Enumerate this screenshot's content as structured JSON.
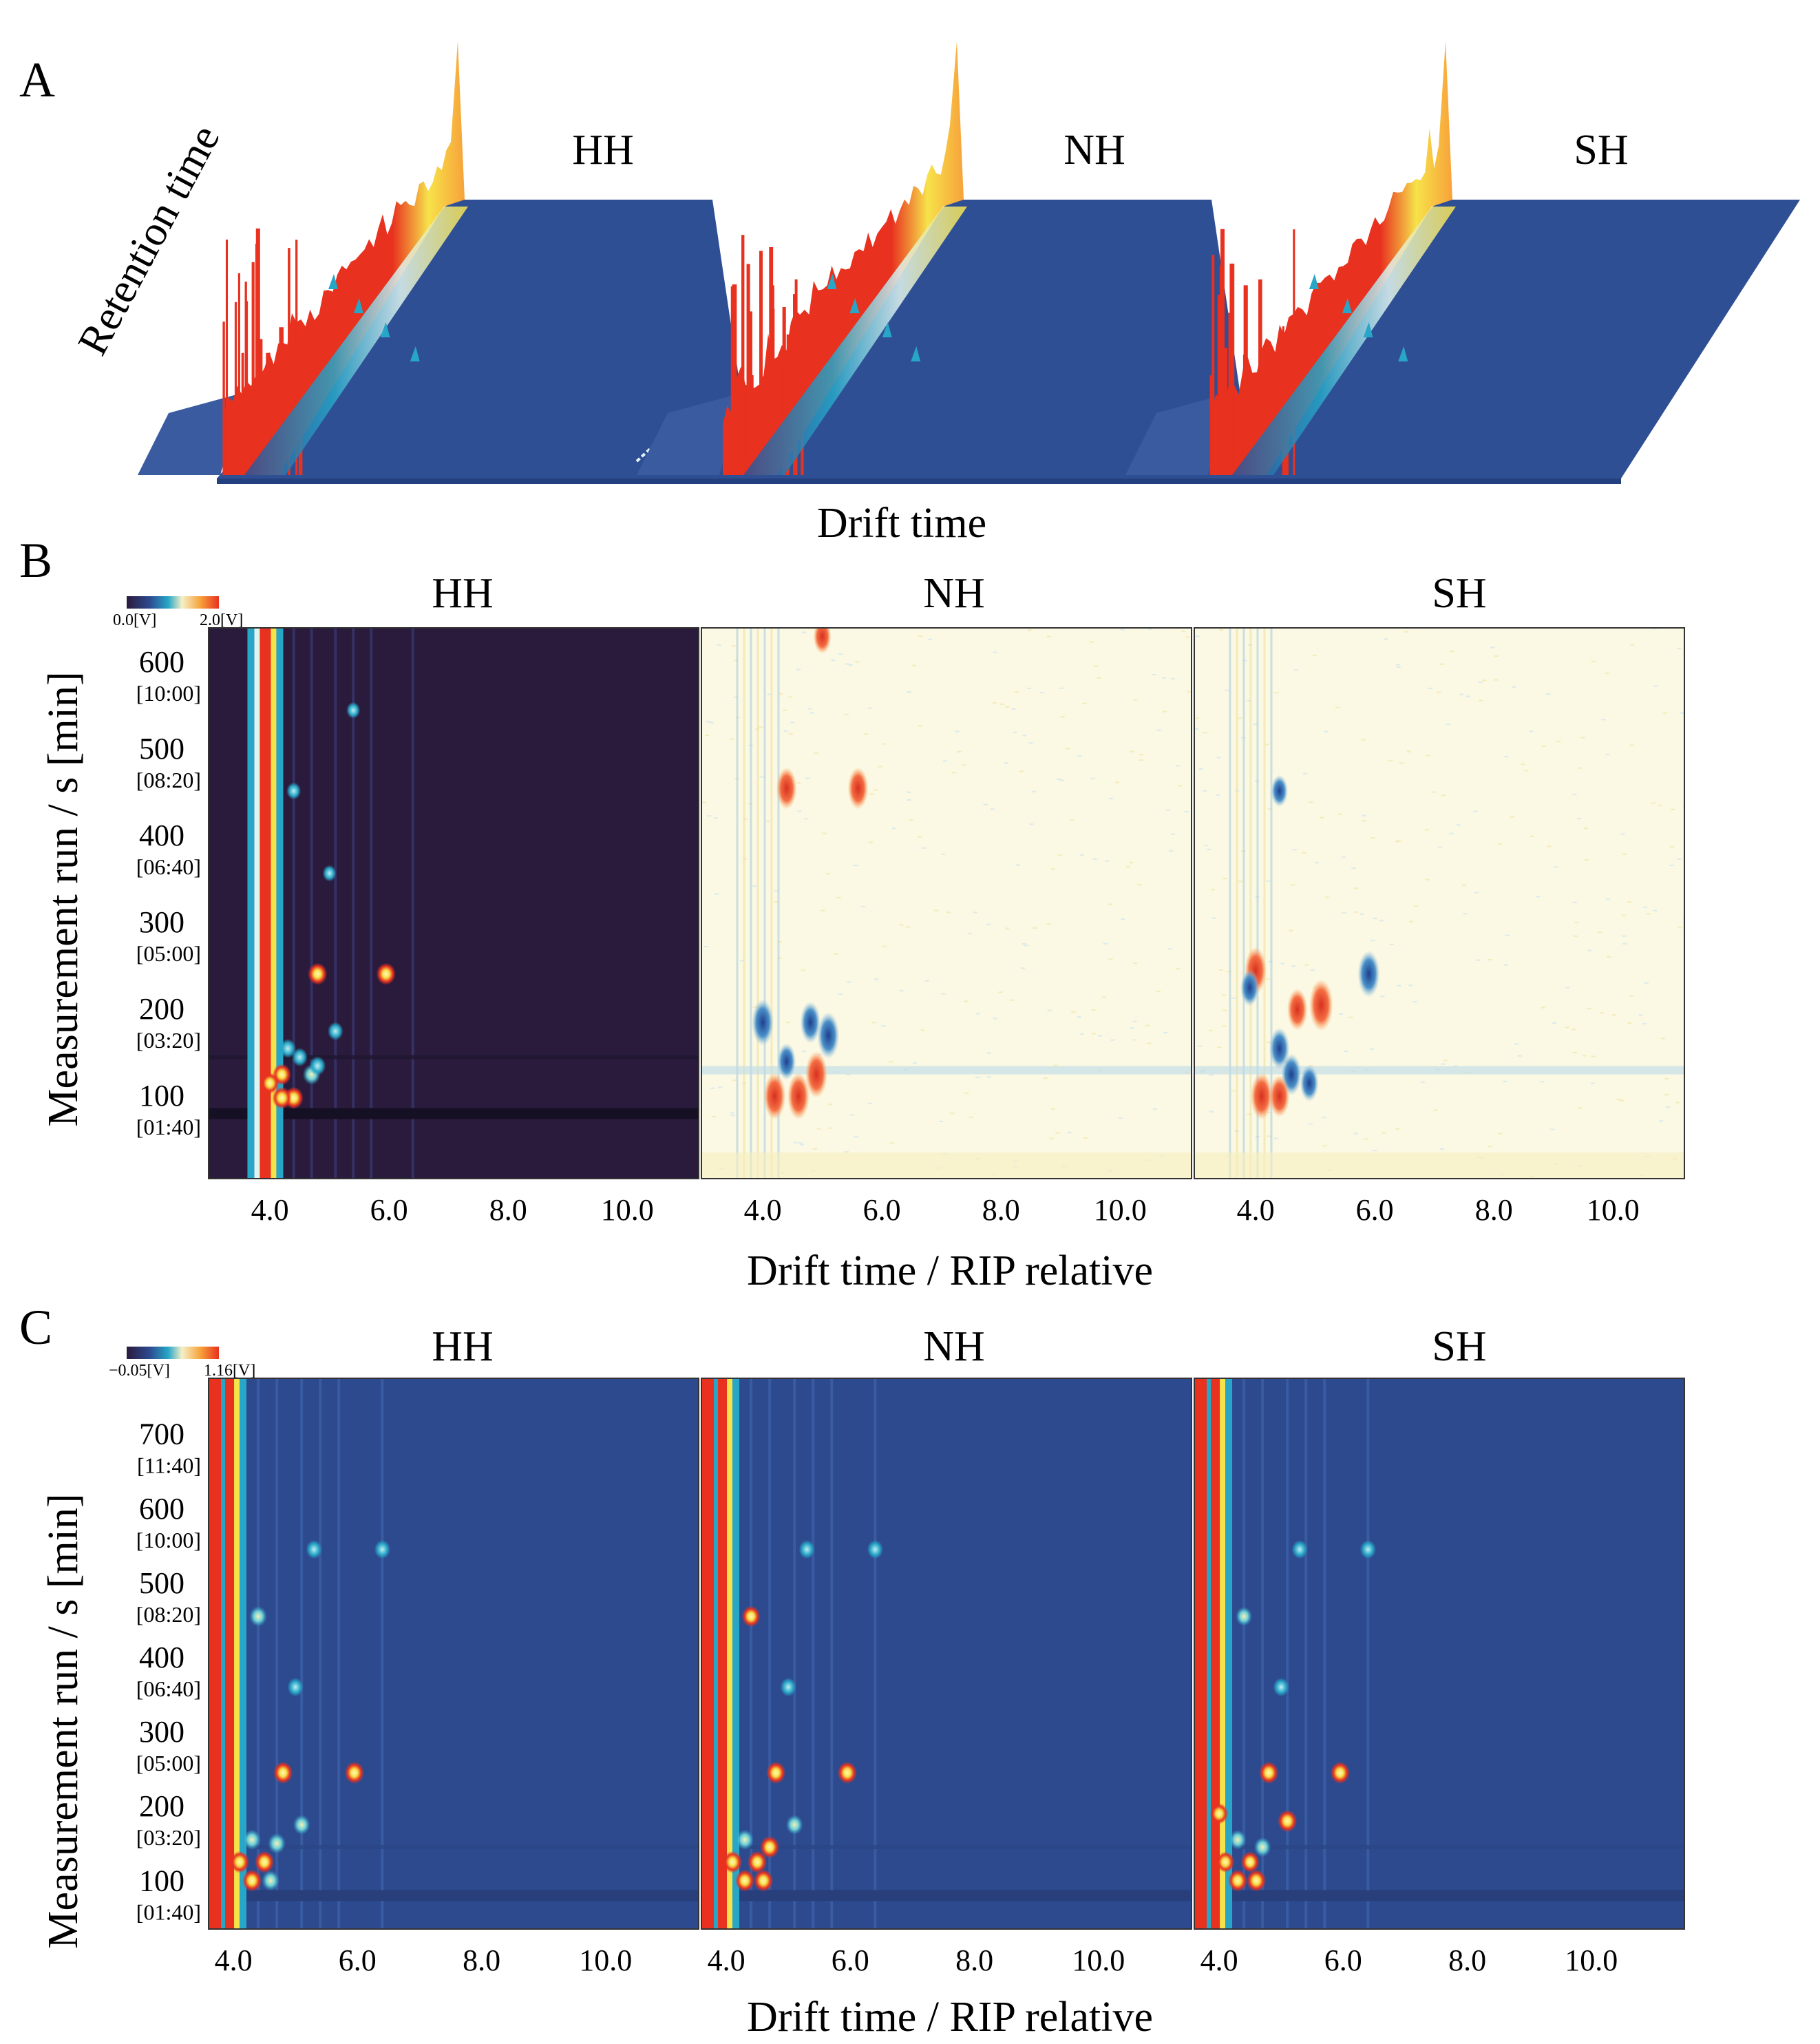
{
  "figure": {
    "panels": [
      {
        "label": "A",
        "type": "3d-topographic",
        "axis_labels": {
          "retention": "Retention time",
          "drift": "Drift time"
        },
        "samples": [
          "HH",
          "NH",
          "SH"
        ]
      },
      {
        "label": "B",
        "type": "heatmap-difference",
        "samples": [
          "HH",
          "NH",
          "SH"
        ],
        "colorbar": {
          "min_label": "0.0[V]",
          "max_label": "2.0[V]"
        },
        "ylabel": "Measurement run / s [min]",
        "xlabel": "Drift time / RIP relative",
        "y_ticks": [
          {
            "value": 600,
            "label": "600",
            "sub": "[10:00]"
          },
          {
            "value": 500,
            "label": "500",
            "sub": "[08:20]"
          },
          {
            "value": 400,
            "label": "400",
            "sub": "[06:40]"
          },
          {
            "value": 300,
            "label": "300",
            "sub": "[05:00]"
          },
          {
            "value": 200,
            "label": "200",
            "sub": "[03:20]"
          },
          {
            "value": 100,
            "label": "100",
            "sub": "[01:40]"
          }
        ],
        "ylim": [
          0,
          635
        ],
        "x_ticks": [
          {
            "value": 4,
            "label": "4.0"
          },
          {
            "value": 6,
            "label": "6.0"
          },
          {
            "value": 8,
            "label": "8.0"
          },
          {
            "value": 10,
            "label": "10.0"
          }
        ],
        "xlim": [
          2.97,
          11.2
        ]
      },
      {
        "label": "C",
        "type": "heatmap",
        "samples": [
          "HH",
          "NH",
          "SH"
        ],
        "colorbar": {
          "min_label": "−0.05[V]",
          "max_label": "1.16[V]"
        },
        "ylabel": "Measurement run / s [min]",
        "xlabel": "Drift time / RIP relative",
        "y_ticks": [
          {
            "value": 700,
            "label": "700",
            "sub": "[11:40]"
          },
          {
            "value": 600,
            "label": "600",
            "sub": "[10:00]"
          },
          {
            "value": 500,
            "label": "500",
            "sub": "[08:20]"
          },
          {
            "value": 400,
            "label": "400",
            "sub": "[06:40]"
          },
          {
            "value": 300,
            "label": "300",
            "sub": "[05:00]"
          },
          {
            "value": 200,
            "label": "200",
            "sub": "[03:20]"
          },
          {
            "value": 100,
            "label": "100",
            "sub": "[01:40]"
          }
        ],
        "ylim": [
          30,
          770
        ],
        "x_ticks": [
          {
            "value": 4,
            "label": "4.0"
          },
          {
            "value": 6,
            "label": "6.0"
          },
          {
            "value": 8,
            "label": "8.0"
          },
          {
            "value": 10,
            "label": "10.0"
          }
        ],
        "xlim": [
          3.6,
          11.5
        ]
      }
    ]
  },
  "colors": {
    "background_dark": "#2a1b3d",
    "background_blue": "#2d4a8f",
    "neutral_light": "#fbf8e3",
    "peak_red": "#e8311f",
    "peak_yellow": "#f7e24a",
    "peak_cyan": "#27a6c7",
    "surface_blue": "#2f4f95"
  },
  "chart_data": [
    {
      "type": "heatmap",
      "panel": "B-HH",
      "xlabel": "Drift time / RIP relative",
      "ylabel": "Measurement run / s [min]",
      "xlim": [
        2.97,
        11.2
      ],
      "ylim": [
        0,
        635
      ],
      "colorbar_range": [
        0.0,
        2.0
      ],
      "rip_line_x": 3.9,
      "peaks": [
        {
          "x": 4.4,
          "y": 447,
          "v": 0.6
        },
        {
          "x": 5.0,
          "y": 352,
          "v": 0.4
        },
        {
          "x": 4.8,
          "y": 236,
          "v": 2.0
        },
        {
          "x": 5.95,
          "y": 236,
          "v": 2.0
        },
        {
          "x": 5.1,
          "y": 170,
          "v": 0.9
        },
        {
          "x": 4.3,
          "y": 150,
          "v": 1.2
        },
        {
          "x": 4.5,
          "y": 140,
          "v": 1.0
        },
        {
          "x": 4.2,
          "y": 120,
          "v": 1.8
        },
        {
          "x": 4.0,
          "y": 110,
          "v": 1.8
        },
        {
          "x": 4.4,
          "y": 93,
          "v": 2.0
        },
        {
          "x": 4.2,
          "y": 93,
          "v": 2.0
        },
        {
          "x": 4.7,
          "y": 120,
          "v": 1.6
        },
        {
          "x": 4.8,
          "y": 130,
          "v": 1.2
        },
        {
          "x": 5.4,
          "y": 540,
          "v": 0.4
        }
      ]
    },
    {
      "type": "heatmap",
      "panel": "B-NH",
      "xlabel": "Drift time / RIP relative",
      "xlim": [
        2.97,
        11.2
      ],
      "ylim": [
        0,
        635
      ],
      "difference_vs": "HH",
      "peaks": [
        {
          "x": 4.4,
          "y": 450,
          "v": 0.8
        },
        {
          "x": 5.6,
          "y": 450,
          "v": 0.8
        },
        {
          "x": 4.0,
          "y": 180,
          "v": -1.0
        },
        {
          "x": 5.1,
          "y": 165,
          "v": -1.0
        },
        {
          "x": 4.8,
          "y": 180,
          "v": -0.8
        },
        {
          "x": 4.9,
          "y": 120,
          "v": 1.0
        },
        {
          "x": 4.2,
          "y": 95,
          "v": 1.0
        },
        {
          "x": 4.6,
          "y": 95,
          "v": 1.0
        },
        {
          "x": 4.4,
          "y": 135,
          "v": -0.6
        },
        {
          "x": 5.0,
          "y": 625,
          "v": 0.5
        }
      ]
    },
    {
      "type": "heatmap",
      "panel": "B-SH",
      "xlabel": "Drift time / RIP relative",
      "xlim": [
        2.97,
        11.2
      ],
      "ylim": [
        0,
        635
      ],
      "difference_vs": "HH",
      "peaks": [
        {
          "x": 4.0,
          "y": 240,
          "v": 1.0
        },
        {
          "x": 5.1,
          "y": 200,
          "v": 1.2
        },
        {
          "x": 4.7,
          "y": 195,
          "v": 0.8
        },
        {
          "x": 5.9,
          "y": 236,
          "v": -1.0
        },
        {
          "x": 3.9,
          "y": 220,
          "v": -0.6
        },
        {
          "x": 4.4,
          "y": 150,
          "v": -0.8
        },
        {
          "x": 4.6,
          "y": 120,
          "v": -0.8
        },
        {
          "x": 4.9,
          "y": 110,
          "v": -0.6
        },
        {
          "x": 4.1,
          "y": 95,
          "v": 1.0
        },
        {
          "x": 4.4,
          "y": 95,
          "v": 0.8
        },
        {
          "x": 4.4,
          "y": 447,
          "v": -0.4
        }
      ]
    },
    {
      "type": "heatmap",
      "panel": "C-HH",
      "xlabel": "Drift time / RIP relative",
      "xlim": [
        3.6,
        11.5
      ],
      "ylim": [
        30,
        770
      ],
      "colorbar_range": [
        -0.05,
        1.16
      ],
      "rip_line_x": 3.9,
      "peaks": [
        {
          "x": 5.3,
          "y": 540,
          "v": 0.6
        },
        {
          "x": 6.4,
          "y": 540,
          "v": 0.6
        },
        {
          "x": 4.4,
          "y": 450,
          "v": 0.9
        },
        {
          "x": 5.0,
          "y": 355,
          "v": 0.6
        },
        {
          "x": 4.8,
          "y": 240,
          "v": 1.16
        },
        {
          "x": 5.95,
          "y": 240,
          "v": 1.16
        },
        {
          "x": 5.1,
          "y": 170,
          "v": 0.8
        },
        {
          "x": 4.3,
          "y": 150,
          "v": 0.9
        },
        {
          "x": 4.7,
          "y": 145,
          "v": 0.9
        },
        {
          "x": 4.1,
          "y": 120,
          "v": 1.16
        },
        {
          "x": 4.5,
          "y": 120,
          "v": 1.16
        },
        {
          "x": 4.3,
          "y": 95,
          "v": 1.16
        },
        {
          "x": 4.6,
          "y": 95,
          "v": 0.9
        }
      ]
    },
    {
      "type": "heatmap",
      "panel": "C-NH",
      "xlabel": "Drift time / RIP relative",
      "xlim": [
        3.6,
        11.5
      ],
      "ylim": [
        30,
        770
      ],
      "colorbar_range": [
        -0.05,
        1.16
      ],
      "peaks": [
        {
          "x": 5.3,
          "y": 540,
          "v": 0.6
        },
        {
          "x": 6.4,
          "y": 540,
          "v": 0.6
        },
        {
          "x": 4.4,
          "y": 450,
          "v": 1.0
        },
        {
          "x": 5.0,
          "y": 355,
          "v": 0.6
        },
        {
          "x": 4.8,
          "y": 240,
          "v": 1.16
        },
        {
          "x": 5.95,
          "y": 240,
          "v": 1.16
        },
        {
          "x": 5.1,
          "y": 170,
          "v": 0.8
        },
        {
          "x": 4.3,
          "y": 150,
          "v": 0.9
        },
        {
          "x": 4.7,
          "y": 140,
          "v": 1.16
        },
        {
          "x": 4.1,
          "y": 120,
          "v": 1.16
        },
        {
          "x": 4.5,
          "y": 120,
          "v": 1.16
        },
        {
          "x": 4.3,
          "y": 95,
          "v": 1.16
        },
        {
          "x": 4.6,
          "y": 95,
          "v": 1.16
        }
      ]
    },
    {
      "type": "heatmap",
      "panel": "C-SH",
      "xlabel": "Drift time / RIP relative",
      "xlim": [
        3.6,
        11.5
      ],
      "ylim": [
        30,
        770
      ],
      "colorbar_range": [
        -0.05,
        1.16
      ],
      "peaks": [
        {
          "x": 5.3,
          "y": 540,
          "v": 0.6
        },
        {
          "x": 6.4,
          "y": 540,
          "v": 0.6
        },
        {
          "x": 4.4,
          "y": 450,
          "v": 0.7
        },
        {
          "x": 5.0,
          "y": 355,
          "v": 0.6
        },
        {
          "x": 4.8,
          "y": 240,
          "v": 1.16
        },
        {
          "x": 5.95,
          "y": 240,
          "v": 1.16
        },
        {
          "x": 4.0,
          "y": 185,
          "v": 1.0
        },
        {
          "x": 5.1,
          "y": 175,
          "v": 1.16
        },
        {
          "x": 4.3,
          "y": 150,
          "v": 0.8
        },
        {
          "x": 4.7,
          "y": 140,
          "v": 0.8
        },
        {
          "x": 4.1,
          "y": 120,
          "v": 1.0
        },
        {
          "x": 4.5,
          "y": 120,
          "v": 1.0
        },
        {
          "x": 4.3,
          "y": 95,
          "v": 1.16
        },
        {
          "x": 4.6,
          "y": 95,
          "v": 1.16
        }
      ]
    }
  ]
}
